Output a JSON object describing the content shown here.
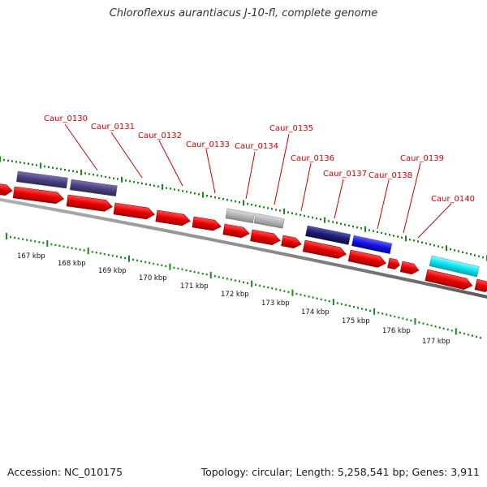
{
  "title": "Chloroflexus aurantiacus J-10-fl, complete genome",
  "footer": {
    "accession": "Accession: NC_010175",
    "summary": "Topology: circular; Length: 5,258,541 bp; Genes: 3,911"
  },
  "colors": {
    "forward_gene": "#e60000",
    "reverse_gene_dark": "#4a4280",
    "reverse_gene_navy": "#1c1c78",
    "reverse_gene_blue": "#1414e0",
    "reverse_gene_cyan": "#00e4f0",
    "gray_gene": "#b4b4b4",
    "backbone": "#8c8c8c",
    "tick_mark": "#1a8a1a",
    "locus_label": "#cc0000"
  },
  "scale_labels": [
    "167 kbp",
    "168 kbp",
    "169 kbp",
    "170 kbp",
    "171 kbp",
    "172 kbp",
    "173 kbp",
    "174 kbp",
    "175 kbp",
    "176 kbp",
    "177 kbp"
  ],
  "locus_tags": [
    "Caur_0130",
    "Caur_0131",
    "Caur_0132",
    "Caur_0133",
    "Caur_0134",
    "Caur_0135",
    "Caur_0136",
    "Caur_0137",
    "Caur_0138",
    "Caur_0139",
    "Caur_0140"
  ]
}
